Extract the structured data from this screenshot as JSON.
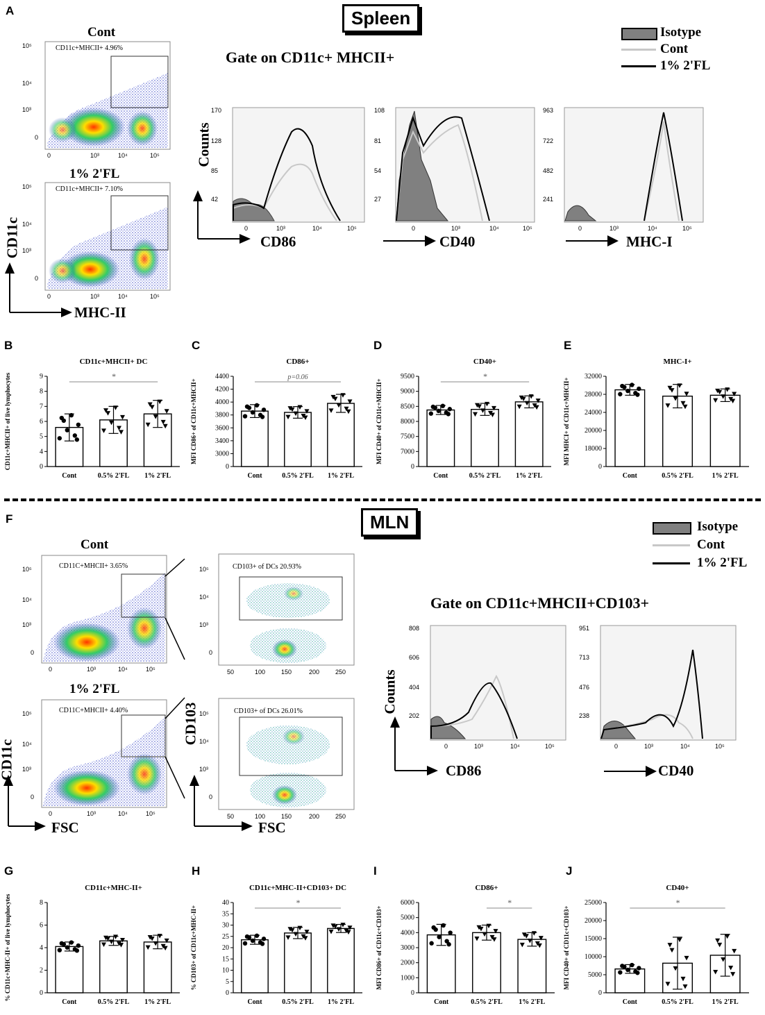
{
  "spleen": {
    "panel": "A",
    "title": "Spleen",
    "gate_title": "Gate on CD11c+ MHCII+",
    "dot_cont_label": "Cont",
    "dot_cont_gate": "CD11c+MHCII+ 4.96%",
    "dot_fl_label": "1% 2'FL",
    "dot_fl_gate": "CD11c+MHCII+ 7.10%",
    "y_axis": "CD11c",
    "x_axis": "MHC-II",
    "counts_label": "Counts",
    "legend": [
      "Isotype",
      "Cont",
      "1% 2'FL"
    ],
    "hist": [
      {
        "marker": "CD86",
        "yticks": [
          "170",
          "128",
          "85",
          "42"
        ]
      },
      {
        "marker": "CD40",
        "yticks": [
          "108",
          "81",
          "54",
          "27"
        ]
      },
      {
        "marker": "MHC-I",
        "yticks": [
          "963",
          "722",
          "482",
          "241"
        ]
      }
    ],
    "log_ticks": [
      "0",
      "10³",
      "10⁴",
      "10⁵"
    ],
    "log_yticks": [
      "10⁵",
      "10⁴",
      "10³",
      "0"
    ]
  },
  "mln": {
    "panel": "F",
    "title": "MLN",
    "gate_title": "Gate on CD11c+MHCII+CD103+",
    "dot_cont_label": "Cont",
    "dot_cont_gate": "CD11C+MHCII+ 3.65%",
    "dot_cont_gate2": "CD103+ of DCs 20.93%",
    "dot_fl_label": "1% 2'FL",
    "dot_fl_gate": "CD11C+MHCII+ 4.40%",
    "dot_fl_gate2": "CD103+ of DCs 26.01%",
    "y_axis": "CD11c",
    "y_axis2": "CD103",
    "x_axis": "FSC",
    "x_axis2": "FSC",
    "counts_label": "Counts",
    "legend": [
      "Isotype",
      "Cont",
      "1% 2'FL"
    ],
    "hist": [
      {
        "marker": "CD86",
        "yticks": [
          "808",
          "606",
          "404",
          "202"
        ]
      },
      {
        "marker": "CD40",
        "yticks": [
          "951",
          "713",
          "476",
          "238"
        ]
      }
    ],
    "fsc_ticks": [
      "0",
      "50",
      "100",
      "150",
      "200",
      "250"
    ],
    "fsc_ticks2": [
      "50",
      "100",
      "150",
      "200",
      "250"
    ]
  },
  "chart_data": [
    {
      "panel": "B",
      "type": "bar",
      "title": "CD11c+MHCII+ DC",
      "ylabel": "CD11c+MHCII+ of live lymphocytes",
      "categories": [
        "Cont",
        "0.5% 2'FL",
        "1% 2'FL"
      ],
      "values": [
        5.6,
        6.1,
        6.5
      ],
      "errors": [
        0.9,
        0.9,
        0.9
      ],
      "ylim": [
        0,
        9
      ],
      "yticks": [
        "0",
        "4",
        "5",
        "6",
        "7",
        "8",
        "9"
      ],
      "annotation": "*",
      "sig": [
        0,
        2
      ]
    },
    {
      "panel": "C",
      "type": "bar",
      "title": "CD86+",
      "ylabel": "MFI CD86+ of CD11c+MHCII+",
      "categories": [
        "Cont",
        "0.5% 2'FL",
        "1% 2'FL"
      ],
      "values": [
        3860,
        3840,
        3980
      ],
      "errors": [
        100,
        90,
        140
      ],
      "ylim": [
        0,
        4400
      ],
      "yticks": [
        "0",
        "3000",
        "3400",
        "3600",
        "3800",
        "4000",
        "4200",
        "4400"
      ],
      "annotation": "p=0.06",
      "sig": [
        0,
        2
      ]
    },
    {
      "panel": "D",
      "type": "bar",
      "title": "CD40+",
      "ylabel": "MFI CD40+ of CD11c+MHCII+",
      "categories": [
        "Cont",
        "0.5% 2'FL",
        "1% 2'FL"
      ],
      "values": [
        8380,
        8400,
        8650
      ],
      "errors": [
        150,
        200,
        200
      ],
      "ylim": [
        0,
        9500
      ],
      "yticks": [
        "0",
        "7000",
        "7500",
        "8000",
        "8500",
        "9000",
        "9500"
      ],
      "annotation": "*",
      "sig": [
        0,
        2
      ]
    },
    {
      "panel": "E",
      "type": "bar",
      "title": "MHC-I+",
      "ylabel": "MFI MHCI+ of CD11c+MHCII+",
      "categories": [
        "Cont",
        "0.5% 2'FL",
        "1% 2'FL"
      ],
      "values": [
        29000,
        27600,
        27800
      ],
      "errors": [
        1200,
        2600,
        1400
      ],
      "ylim": [
        0,
        32000
      ],
      "yticks": [
        "0",
        "18000",
        "20000",
        "24000",
        "28000",
        "32000"
      ],
      "annotation": "",
      "sig": null
    },
    {
      "panel": "G",
      "type": "bar",
      "title": "CD11c+MHC-II+",
      "ylabel": "% CD11c+MHC-II+ of live lymphocytes",
      "categories": [
        "Cont",
        "0.5% 2'FL",
        "1% 2'FL"
      ],
      "values": [
        4.1,
        4.6,
        4.5
      ],
      "errors": [
        0.4,
        0.4,
        0.6
      ],
      "ylim": [
        0,
        8
      ],
      "yticks": [
        "0",
        "2",
        "4",
        "6",
        "8"
      ],
      "annotation": "",
      "sig": null
    },
    {
      "panel": "H",
      "type": "bar",
      "title": "CD11c+MHC-II+CD103+ DC",
      "ylabel": "% CD103+ of CD11c+MHC-II+",
      "categories": [
        "Cont",
        "0.5% 2'FL",
        "1% 2'FL"
      ],
      "values": [
        23.5,
        26.5,
        28.5
      ],
      "errors": [
        2.0,
        2.5,
        1.8
      ],
      "ylim": [
        0,
        40
      ],
      "yticks": [
        "0",
        "5",
        "10",
        "15",
        "20",
        "25",
        "30",
        "35",
        "40"
      ],
      "annotation": "*",
      "sig": [
        0,
        2
      ]
    },
    {
      "panel": "I",
      "type": "bar",
      "title": "CD86+",
      "ylabel": "MFI CD86+ of CD11c+CD103+",
      "categories": [
        "Cont",
        "0.5% 2'FL",
        "1% 2'FL"
      ],
      "values": [
        3850,
        4000,
        3550
      ],
      "errors": [
        700,
        500,
        450
      ],
      "ylim": [
        0,
        6000
      ],
      "yticks": [
        "0",
        "1000",
        "2000",
        "3000",
        "4000",
        "5000",
        "6000"
      ],
      "annotation": "*",
      "sig": [
        1,
        2
      ]
    },
    {
      "panel": "J",
      "type": "bar",
      "title": "CD40+",
      "ylabel": "MFI CD40+ of CD11c+CD103+",
      "categories": [
        "Cont",
        "0.5% 2'FL",
        "1% 2'FL"
      ],
      "values": [
        6600,
        8200,
        10400
      ],
      "errors": [
        1200,
        7200,
        5800
      ],
      "ylim": [
        0,
        25000
      ],
      "yticks": [
        "0",
        "5000",
        "10000",
        "15000",
        "20000",
        "25000"
      ],
      "annotation": "*",
      "sig": [
        0,
        2
      ]
    }
  ],
  "colors": {
    "isotype": "#808080",
    "cont": "#c8c8c8",
    "fl": "#000000",
    "hist_bg": "#f4f4f4"
  }
}
